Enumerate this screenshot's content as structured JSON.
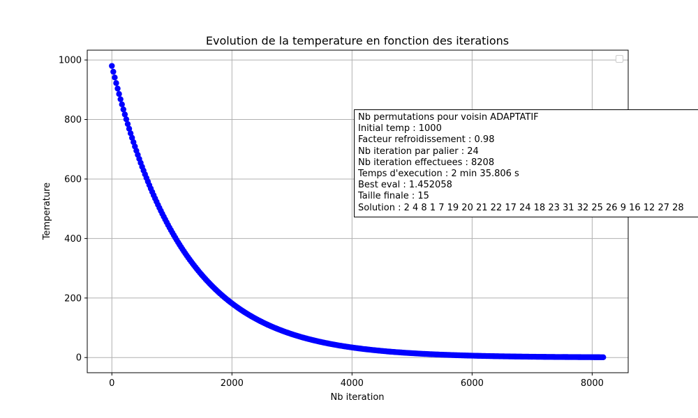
{
  "chart_data": {
    "type": "scatter",
    "title": "Evolution de la temperature en fonction des iterations",
    "xlabel": "Nb iteration",
    "ylabel": "Temperature",
    "xlim": [
      -410,
      8600
    ],
    "ylim": [
      -51,
      1033
    ],
    "x_ticks": [
      0,
      2000,
      4000,
      6000,
      8000
    ],
    "x_tick_labels": [
      "0",
      "2000",
      "4000",
      "6000",
      "8000"
    ],
    "y_ticks": [
      0,
      200,
      400,
      600,
      800,
      1000
    ],
    "y_tick_labels": [
      "0",
      "200",
      "400",
      "600",
      "800",
      "1000"
    ],
    "grid": true,
    "legend": "upper right (empty)",
    "marker_color": "#0000ff",
    "series": {
      "initial_temp": 1000,
      "cooling_factor": 0.98,
      "iterations_per_step": 24,
      "total_iterations": 8208,
      "first_point_x": 0,
      "first_point_y": 980,
      "last_point_x": 8184,
      "last_point_y": 1.0
    },
    "annotation": [
      "Nb permutations pour voisin ADAPTATIF",
      "Initial temp : 1000",
      "Facteur refroidissement : 0.98",
      "Nb iteration par palier : 24",
      "Nb iteration effectuees : 8208",
      "Temps d'execution : 2 min 35.806 s",
      "Best eval : 1.452058",
      "Taille finale : 15",
      "Solution : 2 4 8 1 7 19 20 21 22 17 24 18 23 31 32 25 26 9 16 12 27 28"
    ]
  },
  "colors": {
    "grid": "#b0b0b0",
    "axes": "#000000"
  }
}
